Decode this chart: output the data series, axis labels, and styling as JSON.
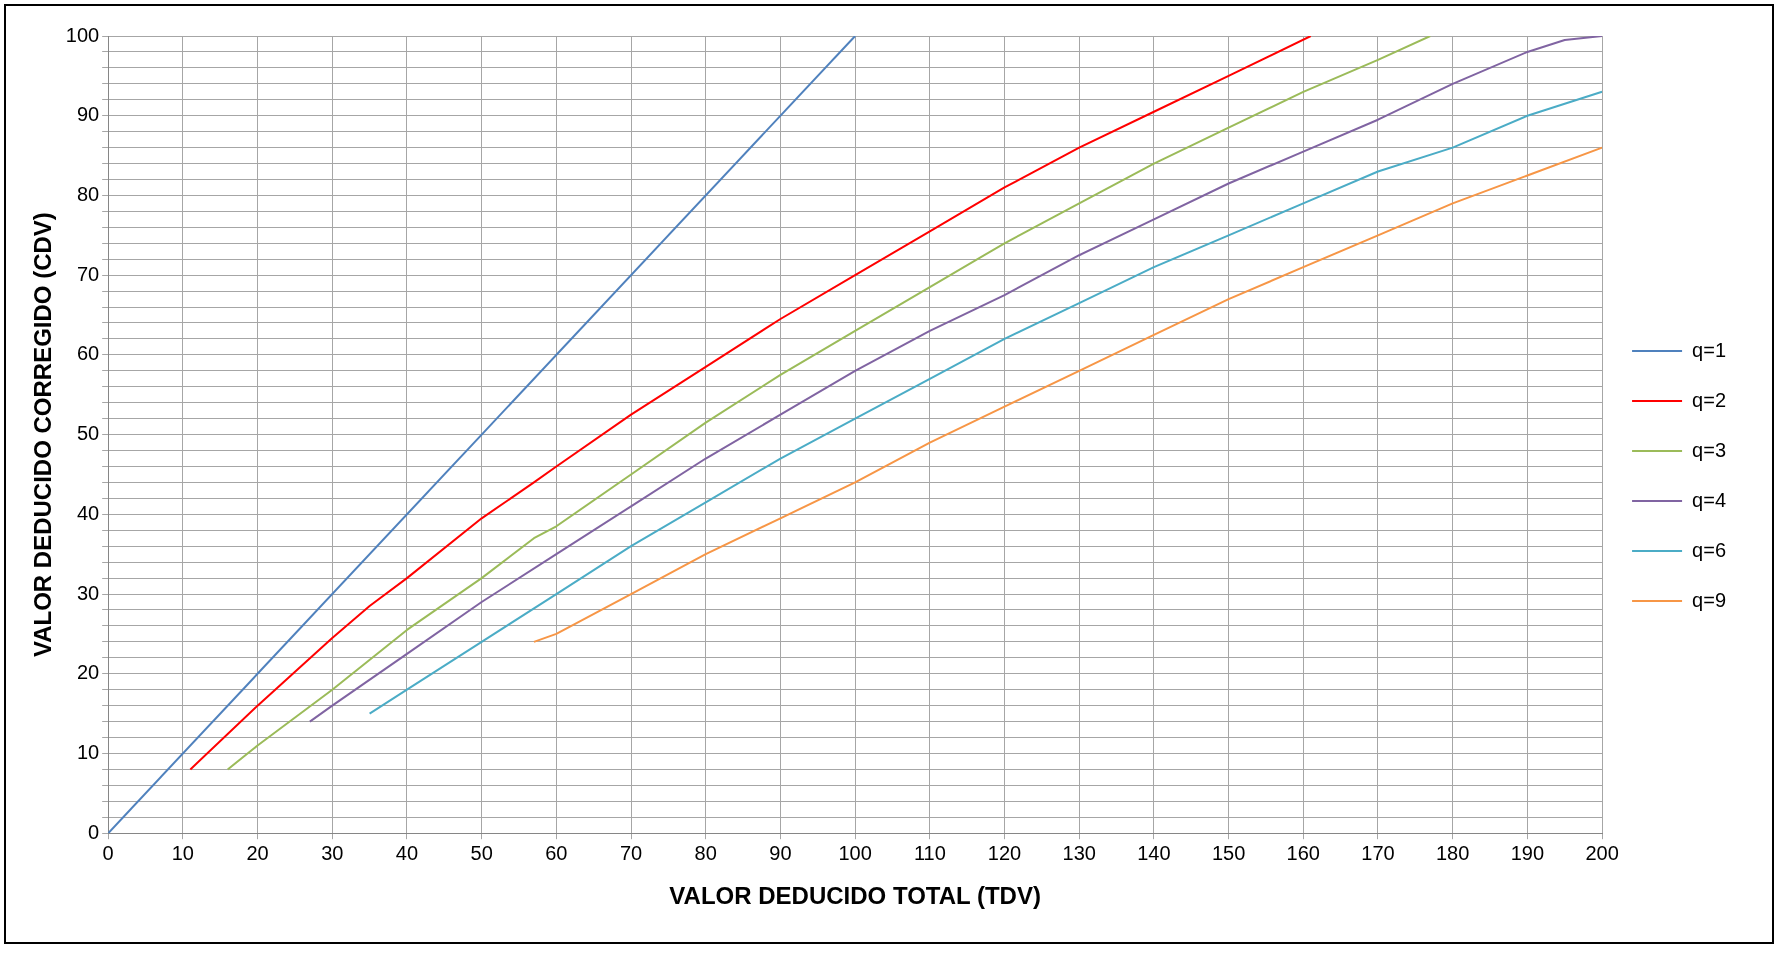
{
  "chart_data": {
    "type": "line",
    "xlabel": "VALOR DEDUCIDO TOTAL (TDV)",
    "ylabel": "VALOR DEDUCIDO CORREGIDO (CDV)",
    "xlim": [
      0,
      200
    ],
    "xticks": [
      0,
      10,
      20,
      30,
      40,
      50,
      60,
      70,
      80,
      90,
      100,
      110,
      120,
      130,
      140,
      150,
      160,
      170,
      180,
      190,
      200
    ],
    "ylim": [
      0,
      100
    ],
    "yticks": [
      0,
      {
        "value": 2,
        "label": null
      },
      {
        "value": 4,
        "label": null
      },
      {
        "value": 6,
        "label": null
      },
      {
        "value": 8,
        "label": null
      },
      10,
      {
        "value": 12,
        "label": null
      },
      {
        "value": 14,
        "label": null
      },
      {
        "value": 16,
        "label": null
      },
      {
        "value": 18,
        "label": null
      },
      20,
      {
        "value": 22,
        "label": null
      },
      {
        "value": 24,
        "label": null
      },
      {
        "value": 26,
        "label": null
      },
      {
        "value": 28,
        "label": null
      },
      30,
      {
        "value": 32,
        "label": null
      },
      {
        "value": 34,
        "label": null
      },
      {
        "value": 36,
        "label": null
      },
      {
        "value": 38,
        "label": null
      },
      40,
      {
        "value": 42,
        "label": null
      },
      {
        "value": 44,
        "label": null
      },
      {
        "value": 46,
        "label": null
      },
      {
        "value": 48,
        "label": null
      },
      50,
      {
        "value": 52,
        "label": null
      },
      {
        "value": 54,
        "label": null
      },
      {
        "value": 56,
        "label": null
      },
      {
        "value": 58,
        "label": null
      },
      60,
      {
        "value": 62,
        "label": null
      },
      {
        "value": 64,
        "label": null
      },
      {
        "value": 66,
        "label": null
      },
      {
        "value": 68,
        "label": null
      },
      70,
      {
        "value": 72,
        "label": null
      },
      {
        "value": 74,
        "label": null
      },
      {
        "value": 76,
        "label": null
      },
      {
        "value": 78,
        "label": null
      },
      80,
      {
        "value": 82,
        "label": null
      },
      {
        "value": 84,
        "label": null
      },
      {
        "value": 86,
        "label": null
      },
      {
        "value": 88,
        "label": null
      },
      90,
      {
        "value": 92,
        "label": null
      },
      {
        "value": 94,
        "label": null
      },
      {
        "value": 96,
        "label": null
      },
      {
        "value": 98,
        "label": null
      },
      100
    ],
    "grid": true,
    "legend": "right",
    "marker": "none",
    "line_style": "solid",
    "series": [
      {
        "name": "q=1",
        "color": "#4f81bd",
        "x": [
          0,
          100
        ],
        "values": [
          0,
          100
        ]
      },
      {
        "name": "q=2",
        "color": "#ff0000",
        "x": [
          11,
          20,
          30,
          35,
          40,
          50,
          57,
          60,
          70,
          80,
          90,
          100,
          110,
          120,
          130,
          140,
          150,
          161
        ],
        "values": [
          8,
          16,
          24.5,
          28.5,
          32,
          39.5,
          44,
          46,
          52.5,
          58.5,
          64.5,
          70,
          75.5,
          81,
          86,
          90.5,
          95,
          100
        ]
      },
      {
        "name": "q=3",
        "color": "#9bbb59",
        "x": [
          16,
          20,
          30,
          40,
          50,
          57,
          60,
          70,
          80,
          90,
          100,
          110,
          120,
          130,
          140,
          150,
          160,
          170,
          177
        ],
        "values": [
          8,
          11,
          18,
          25.5,
          32,
          37,
          38.5,
          45,
          51.5,
          57.5,
          63,
          68.5,
          74,
          79,
          84,
          88.5,
          93,
          97,
          100
        ]
      },
      {
        "name": "q=4",
        "color": "#8064a2",
        "x": [
          27,
          30,
          40,
          50,
          60,
          70,
          80,
          90,
          100,
          110,
          120,
          130,
          140,
          150,
          160,
          170,
          180,
          190,
          195,
          200
        ],
        "values": [
          14,
          16,
          22.5,
          29,
          35,
          41,
          47,
          52.5,
          58,
          63,
          67.5,
          72.5,
          77,
          81.5,
          85.5,
          89.5,
          94,
          98,
          99.5,
          100
        ]
      },
      {
        "name": "q=6",
        "color": "#4bacc6",
        "x": [
          35,
          40,
          50,
          60,
          70,
          80,
          90,
          100,
          110,
          120,
          130,
          140,
          150,
          160,
          170,
          180,
          190,
          200
        ],
        "values": [
          15,
          18,
          24,
          30,
          36,
          41.5,
          47,
          52,
          57,
          62,
          66.5,
          71,
          75,
          79,
          83,
          86,
          90,
          93
        ]
      },
      {
        "name": "q=9",
        "color": "#f79646",
        "x": [
          57,
          60,
          70,
          80,
          90,
          100,
          110,
          120,
          130,
          140,
          150,
          160,
          170,
          180,
          190,
          200
        ],
        "values": [
          24,
          25,
          30,
          35,
          39.5,
          44,
          49,
          53.5,
          58,
          62.5,
          67,
          71,
          75,
          79,
          82.5,
          86
        ]
      }
    ]
  }
}
